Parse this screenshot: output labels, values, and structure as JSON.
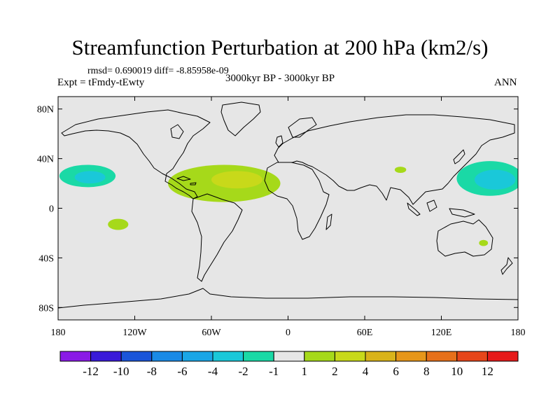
{
  "title": "Streamfunction Perturbation at 200 hPa (km2/s)",
  "stats": "rmsd= 0.690019  diff= -8.85958e-09",
  "expt": "Expt = tFmdy-tEwty",
  "period": "3000kyr BP - 3000kyr BP",
  "season": "ANN",
  "colors": {
    "background": "#e6e6e6",
    "coast": "#000000"
  },
  "map": {
    "projection": "cylindrical-equidistant",
    "lon_range": [
      -180,
      180
    ],
    "lat_range": [
      -90,
      90
    ],
    "lon_ticks": [
      {
        "value": -180,
        "label": "180"
      },
      {
        "value": -120,
        "label": "120W"
      },
      {
        "value": -60,
        "label": "60W"
      },
      {
        "value": 0,
        "label": "0"
      },
      {
        "value": 60,
        "label": "60E"
      },
      {
        "value": 120,
        "label": "120E"
      },
      {
        "value": 180,
        "label": "180"
      }
    ],
    "lat_ticks": [
      {
        "value": 80,
        "label": "80N"
      },
      {
        "value": 40,
        "label": "40N"
      },
      {
        "value": 0,
        "label": "0"
      },
      {
        "value": -40,
        "label": "40S"
      },
      {
        "value": -80,
        "label": "80S"
      }
    ]
  },
  "colorbar": {
    "colors": [
      "#8a1ae6",
      "#3a1ad9",
      "#1a55d9",
      "#1a8ae6",
      "#1aa6e6",
      "#1ac8d9",
      "#1ad9a6",
      "#e6e6e6",
      "#a6d91a",
      "#c8d91a",
      "#d9b31a",
      "#e6961a",
      "#e6701a",
      "#e6461a",
      "#e61a1a"
    ],
    "labels": [
      "-12",
      "-10",
      "-8",
      "-6",
      "-4",
      "-2",
      "-1",
      "1",
      "2",
      "4",
      "6",
      "8",
      "10",
      "12"
    ]
  },
  "anomalies": [
    {
      "name": "central-pacific-negative-low",
      "lon": -157,
      "lat": 26,
      "rx": 22,
      "ry": 9,
      "color": "#1ad9a6"
    },
    {
      "name": "central-pacific-negative-core",
      "lon": -155,
      "lat": 25,
      "rx": 12,
      "ry": 5,
      "color": "#1ac8d9"
    },
    {
      "name": "south-pacific-positive",
      "lon": -133,
      "lat": -13,
      "rx": 8,
      "ry": 4.5,
      "color": "#a6d91a"
    },
    {
      "name": "atlantic-positive-low",
      "lon": -50,
      "lat": 20,
      "rx": 44,
      "ry": 15,
      "color": "#a6d91a"
    },
    {
      "name": "atlantic-positive-core",
      "lon": -40,
      "lat": 23,
      "rx": 20,
      "ry": 7,
      "color": "#c8d91a"
    },
    {
      "name": "india-positive",
      "lon": 88,
      "lat": 31,
      "rx": 4.5,
      "ry": 2.5,
      "color": "#a6d91a"
    },
    {
      "name": "west-pacific-negative-low",
      "lon": 158,
      "lat": 24,
      "rx": 26,
      "ry": 14,
      "color": "#1ad9a6"
    },
    {
      "name": "west-pacific-negative-core",
      "lon": 162,
      "lat": 23,
      "rx": 16,
      "ry": 8,
      "color": "#1ac8d9"
    },
    {
      "name": "australia-positive",
      "lon": 153,
      "lat": -28,
      "rx": 3.5,
      "ry": 2.5,
      "color": "#a6d91a"
    }
  ]
}
